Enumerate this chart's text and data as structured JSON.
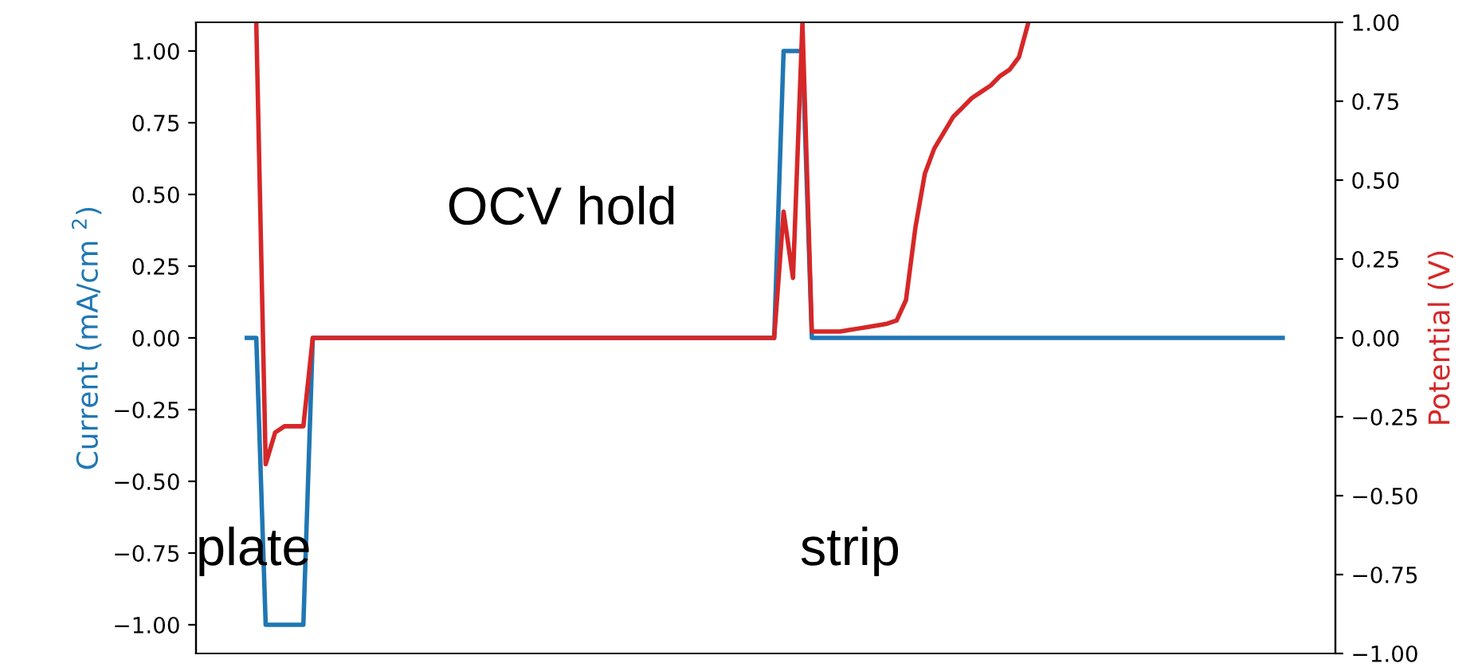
{
  "chart_data": {
    "type": "line",
    "ylabel": "Current (mA/cm $^{2}$)",
    "y2label": "Potential (V)",
    "categories": [
      null,
      null,
      null,
      null,
      null,
      null,
      null,
      null,
      null,
      null,
      null,
      null,
      null,
      null,
      null,
      null,
      null,
      null,
      null,
      null,
      null,
      null,
      null,
      null,
      null,
      null,
      null,
      null,
      null,
      null,
      null,
      null,
      null,
      null,
      null,
      null,
      null,
      null,
      null,
      null,
      null,
      null,
      null,
      null,
      null,
      null,
      null,
      null,
      null,
      null,
      null,
      null,
      null,
      null,
      null,
      null,
      null,
      null,
      null,
      null,
      null,
      null,
      null,
      null,
      null,
      null,
      null,
      null,
      null,
      null,
      null,
      null,
      null,
      null,
      null,
      null,
      null,
      null,
      null,
      null,
      null,
      null,
      null,
      null,
      null,
      null,
      null,
      null,
      null,
      null,
      null,
      null,
      null,
      null,
      null,
      null,
      null,
      null,
      null,
      null,
      null,
      null,
      null,
      null,
      null,
      null,
      null,
      null,
      null,
      null,
      null
    ],
    "ylim": [
      -1.1,
      1.1
    ],
    "yticks": [
      {
        "value": -1.0,
        "label": "−1.00"
      },
      {
        "value": -0.75,
        "label": "−0.75"
      },
      {
        "value": -0.5,
        "label": "−0.50"
      },
      {
        "value": -0.25,
        "label": "−0.25"
      },
      {
        "value": 0,
        "label": "0.00"
      },
      {
        "value": 0.25,
        "label": "0.25"
      },
      {
        "value": 0.5,
        "label": "0.50"
      },
      {
        "value": 0.75,
        "label": "0.75"
      },
      {
        "value": 1.0,
        "label": "1.00"
      }
    ],
    "y2lim": [
      -1.0,
      1.0
    ],
    "y2ticks": [
      {
        "value": -1.0,
        "label": "−1.00"
      },
      {
        "value": -0.75,
        "label": "−0.75"
      },
      {
        "value": -0.5,
        "label": "−0.50"
      },
      {
        "value": -0.25,
        "label": "−0.25"
      },
      {
        "value": 0,
        "label": "0.00"
      },
      {
        "value": 0.25,
        "label": "0.25"
      },
      {
        "value": 0.5,
        "label": "0.50"
      },
      {
        "value": 0.75,
        "label": "0.75"
      },
      {
        "value": 1.0,
        "label": "1.00"
      }
    ],
    "tick_labels": "y",
    "grid": false,
    "legend": false,
    "series": [
      {
        "color": "#1f77b4",
        "values": [
          0,
          0,
          -1,
          -1,
          -1,
          -1,
          -1,
          0,
          0,
          0,
          0,
          0,
          0,
          0,
          0,
          0,
          0,
          0,
          0,
          0,
          0,
          0,
          0,
          0,
          0,
          0,
          0,
          0,
          0,
          0,
          0,
          0,
          0,
          0,
          0,
          0,
          0,
          0,
          0,
          0,
          0,
          0,
          0,
          0,
          0,
          0,
          0,
          0,
          0,
          0,
          0,
          0,
          0,
          0,
          0,
          0,
          0,
          1,
          1,
          1,
          0,
          0,
          0,
          0,
          0,
          0,
          0,
          0,
          0,
          0,
          0,
          0,
          0,
          0,
          0,
          0,
          0,
          0,
          0,
          0,
          0,
          0,
          0,
          0,
          0,
          0,
          0,
          0,
          0,
          0,
          0,
          0,
          0,
          0,
          0,
          0,
          0,
          0,
          0,
          0,
          0,
          0,
          0,
          0,
          0,
          0,
          0,
          0,
          0,
          0,
          0
        ]
      },
      {
        "color": "#d62728",
        "axis": "y2",
        "values": [
          null,
          1.0,
          -0.4,
          -0.3,
          -0.28,
          -0.28,
          -0.28,
          0,
          0,
          0,
          0,
          0,
          0,
          0,
          0,
          0,
          0,
          0,
          0,
          0,
          0,
          0,
          0,
          0,
          0,
          0,
          0,
          0,
          0,
          0,
          0,
          0,
          0,
          0,
          0,
          0,
          0,
          0,
          0,
          0,
          0,
          0,
          0,
          0,
          0,
          0,
          0,
          0,
          0,
          0,
          0,
          0,
          0,
          0,
          0,
          0,
          0,
          0.4,
          0.19,
          1.0,
          0.02,
          0.02,
          0.02,
          0.02,
          0.025,
          0.03,
          0.035,
          0.04,
          0.045,
          0.055,
          0.12,
          0.35,
          0.52,
          0.6,
          0.65,
          0.7,
          0.73,
          0.76,
          0.78,
          0.8,
          0.83,
          0.85,
          0.89,
          1.0,
          null,
          null,
          null,
          null,
          null,
          null,
          null,
          null,
          null,
          null,
          null,
          null,
          null,
          null,
          null,
          null,
          null,
          null,
          null,
          null,
          null,
          null,
          null,
          null,
          null,
          null,
          null
        ]
      }
    ],
    "annotations": [
      "OCV hold",
      "plate",
      "strip"
    ]
  }
}
